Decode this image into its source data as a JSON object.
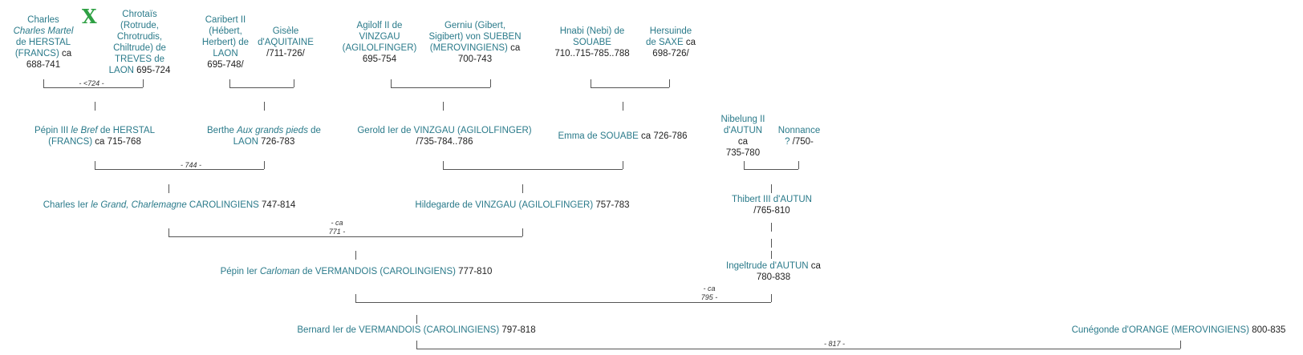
{
  "gen1": {
    "charles_martel": {
      "a": "Charles",
      "b": "Charles Martel",
      "c": "de HERSTAL",
      "d": "(FRANCS)",
      "e": " ca",
      "f": "688-741"
    },
    "chrotais": {
      "a": "Chrotaïs",
      "b": "(Rotrude,",
      "c": "Chrotrudis,",
      "d": "Chiltrude) de",
      "e": "TREVES de",
      "f": "LAON",
      "g": " 695-724"
    },
    "caribert": {
      "a": "Caribert II",
      "b": "(Hébert,",
      "c": "Herbert) de",
      "d": "LAON",
      "e": "695-748/"
    },
    "gisele": {
      "a": "Gisèle",
      "b": "d'AQUITAINE",
      "c": "/711-726/"
    },
    "agilolf": {
      "a": "Agilolf II de",
      "b": "VINZGAU",
      "c": "(AGILOLFINGER)",
      "d": "695-754"
    },
    "gerniu": {
      "a": "Gerniu (Gibert,",
      "b": "Sigibert) von SUEBEN",
      "c": "(MEROVINGIENS)",
      "d": " ca",
      "e": "700-743"
    },
    "hnabi": {
      "a": "Hnabi (Nebi) de",
      "b": "SOUABE",
      "c": "710..715-785..788"
    },
    "hersuinde": {
      "a": "Hersuinde",
      "b": "de SAXE",
      "c": " ca",
      "d": "698-726/"
    }
  },
  "gen2": {
    "pepin3": {
      "a": "Pépin III ",
      "b": "le Bref",
      "c": " de HERSTAL",
      "d": "(FRANCS)",
      "e": " ca 715-768"
    },
    "berthe": {
      "a": "Berthe ",
      "b": "Aux grands pieds",
      "c": " de",
      "d": "LAON",
      "e": " 726-783"
    },
    "gerold": {
      "a": "Gerold Ier de VINZGAU (AGILOLFINGER)",
      "b": "/735-784..786"
    },
    "emma": {
      "a": "Emma de SOUABE",
      "b": " ca 726-786"
    },
    "nibelung": {
      "a": "Nibelung II",
      "b": "d'AUTUN",
      "c": "ca",
      "d": "735-780"
    },
    "nonnance": {
      "a": "Nonnance",
      "b": "?",
      "c": " /750-"
    }
  },
  "gen3": {
    "charlemagne": {
      "a": "Charles Ier ",
      "b": "le Grand, Charlemagne",
      "c": " CAROLINGIENS",
      "d": " 747-814"
    },
    "hildegarde": {
      "a": "Hildegarde de VINZGAU (AGILOLFINGER)",
      "b": " 757-783"
    },
    "thibert": {
      "a": "Thibert III d'AUTUN",
      "b": "/765-810"
    }
  },
  "gen4": {
    "pepin": {
      "a": "Pépin Ier ",
      "b": "Carloman",
      "c": " de VERMANDOIS (CAROLINGIENS)",
      "d": " 777-810"
    },
    "ingeltrude": {
      "a": "Ingeltrude d'AUTUN",
      "b": " ca",
      "c": "780-838"
    }
  },
  "gen5": {
    "bernard": {
      "a": "Bernard Ier de VERMANDOIS (CAROLINGIENS)",
      "b": " 797-818"
    },
    "cunegonde": {
      "a": "Cunégonde d'ORANGE (MEROVINGIENS)",
      "b": " 800-835"
    }
  },
  "marriages": {
    "m724": "- <724 -",
    "m744": "- 744 -",
    "m771a": "- ca",
    "m771b": "771 -",
    "m795a": "- ca",
    "m795b": "795 -",
    "m817": "- 817 -"
  },
  "tick": "|",
  "x_mark": "X",
  "colors": {
    "name": "#2a7a8a",
    "line": "#555555",
    "x_mark": "#2ea043"
  }
}
